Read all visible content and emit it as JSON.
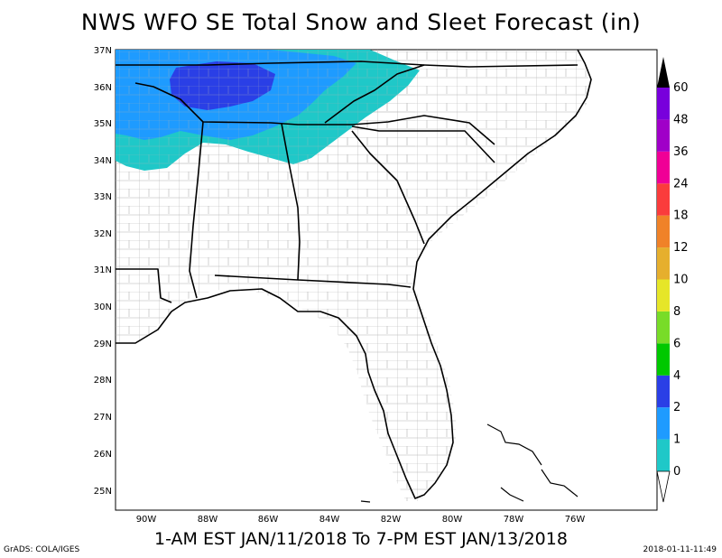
{
  "title": "NWS WFO SE Total Snow and Sleet Forecast (in)",
  "subtitle": "1-AM EST JAN/11/2018 To 7-PM EST JAN/13/2018",
  "footer_left": "GrADS: COLA/IGES",
  "footer_right": "2018-01-11-11:49",
  "lat_labels": [
    "37N",
    "36N",
    "35N",
    "34N",
    "33N",
    "32N",
    "31N",
    "30N",
    "29N",
    "28N",
    "27N",
    "26N",
    "25N"
  ],
  "lon_labels": [
    "90W",
    "88W",
    "86W",
    "84W",
    "82W",
    "80W",
    "78W",
    "76W"
  ],
  "colorbar": {
    "labels": [
      "0",
      "1",
      "2",
      "4",
      "6",
      "8",
      "10",
      "12",
      "18",
      "24",
      "36",
      "48",
      "60"
    ],
    "colors": [
      "#1fc8c8",
      "#1e9bff",
      "#2a3fe6",
      "#00c800",
      "#78dc28",
      "#e6e628",
      "#e6af2d",
      "#f08228",
      "#fa3c3c",
      "#f00096",
      "#a000c8",
      "#7800dc"
    ]
  },
  "map_colors": {
    "snow_0_1": "#1fc8c8",
    "snow_1_2": "#1e9bff",
    "snow_2_4": "#2a3fe6"
  }
}
